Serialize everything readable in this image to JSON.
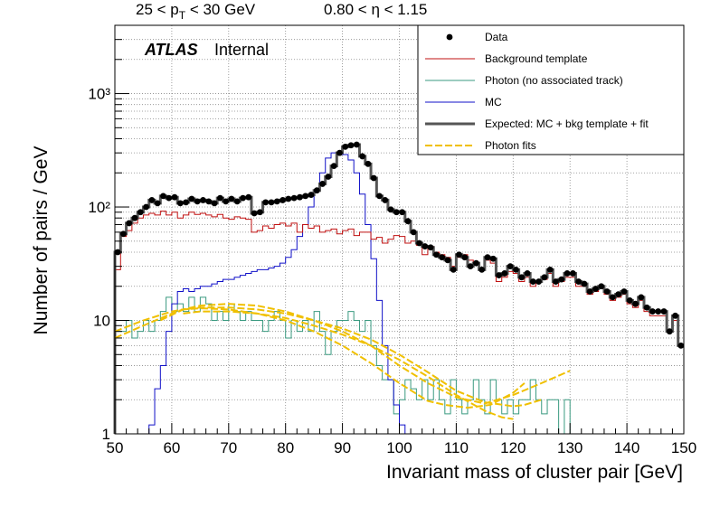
{
  "header": {
    "pt_prefix": "25 < p",
    "pt_sub": "T",
    "pt_suffix": " < 30 GeV",
    "eta_range": "0.80 < η < 1.15"
  },
  "label": {
    "atlas": "ATLAS",
    "status": "Internal"
  },
  "chart_data": {
    "type": "line",
    "xlabel": "Invariant mass of cluster pair [GeV]",
    "ylabel": "Number of pairs / GeV",
    "xlim": [
      50,
      150
    ],
    "ylim": [
      1,
      4000
    ],
    "yscale": "log",
    "grid": true,
    "legend_position": "top-right",
    "x_ticks": [
      50,
      60,
      70,
      80,
      90,
      100,
      110,
      120,
      130,
      140,
      150
    ],
    "y_ticks": [
      {
        "value": 1,
        "label": "1"
      },
      {
        "value": 10,
        "label": "10"
      },
      {
        "value": 100,
        "label": "10²"
      },
      {
        "value": 1000,
        "label": "10³"
      }
    ],
    "legend": [
      {
        "key": "data",
        "label": "Data",
        "style": "marker",
        "color": "#000000"
      },
      {
        "key": "bkg",
        "label": "Background template",
        "style": "line",
        "color": "#c01010"
      },
      {
        "key": "photon",
        "label": "Photon (no associated track)",
        "style": "line",
        "color": "#3a9a80"
      },
      {
        "key": "mc",
        "label": "MC",
        "style": "line",
        "color": "#1010c8"
      },
      {
        "key": "expected",
        "label": "Expected: MC + bkg template + fit",
        "style": "thick",
        "color": "#555555"
      },
      {
        "key": "fits",
        "label": "Photon fits",
        "style": "dashed",
        "color": "#f0c000"
      }
    ],
    "data": {
      "x": [
        50.5,
        51.5,
        52.5,
        53.5,
        54.5,
        55.5,
        56.5,
        57.5,
        58.5,
        59.5,
        60.5,
        61.5,
        62.5,
        63.5,
        64.5,
        65.5,
        66.5,
        67.5,
        68.5,
        69.5,
        70.5,
        71.5,
        72.5,
        73.5,
        74.5,
        75.5,
        76.5,
        77.5,
        78.5,
        79.5,
        80.5,
        81.5,
        82.5,
        83.5,
        84.5,
        85.5,
        86.5,
        87.5,
        88.5,
        89.5,
        90.5,
        91.5,
        92.5,
        93.5,
        94.5,
        95.5,
        96.5,
        97.5,
        98.5,
        99.5,
        100.5,
        101.5,
        102.5,
        103.5,
        104.5,
        105.5,
        106.5,
        107.5,
        108.5,
        109.5,
        110.5,
        111.5,
        112.5,
        113.5,
        114.5,
        115.5,
        116.5,
        117.5,
        118.5,
        119.5,
        120.5,
        121.5,
        122.5,
        123.5,
        124.5,
        125.5,
        126.5,
        127.5,
        128.5,
        129.5,
        130.5,
        131.5,
        132.5,
        133.5,
        134.5,
        135.5,
        136.5,
        137.5,
        138.5,
        139.5,
        140.5,
        141.5,
        142.5,
        143.5,
        144.5,
        145.5,
        146.5,
        147.5,
        148.5,
        149.5
      ],
      "y": [
        40,
        58,
        72,
        80,
        90,
        100,
        115,
        108,
        125,
        120,
        122,
        108,
        110,
        118,
        112,
        115,
        112,
        108,
        120,
        112,
        118,
        112,
        120,
        122,
        88,
        90,
        110,
        110,
        112,
        115,
        118,
        120,
        122,
        125,
        128,
        140,
        160,
        185,
        230,
        300,
        340,
        350,
        355,
        280,
        240,
        180,
        125,
        115,
        95,
        90,
        90,
        75,
        60,
        48,
        45,
        44,
        38,
        36,
        34,
        28,
        38,
        36,
        30,
        32,
        28,
        36,
        35,
        25,
        26,
        30,
        28,
        24,
        26,
        22,
        22,
        24,
        28,
        22,
        23,
        26,
        26,
        22,
        21,
        18,
        19,
        20,
        18,
        16,
        17,
        18,
        15,
        14,
        16,
        13,
        12,
        12,
        12,
        8,
        11,
        6
      ]
    },
    "background": {
      "y": [
        28,
        55,
        62,
        72,
        80,
        85,
        88,
        85,
        92,
        85,
        90,
        80,
        85,
        90,
        86,
        88,
        85,
        82,
        86,
        80,
        78,
        82,
        80,
        78,
        60,
        62,
        68,
        65,
        70,
        72,
        68,
        72,
        60,
        70,
        65,
        68,
        60,
        62,
        64,
        58,
        62,
        64,
        56,
        60,
        60,
        52,
        54,
        48,
        52,
        56,
        55,
        48,
        50,
        46,
        38,
        45,
        40,
        38,
        36,
        30,
        36,
        38,
        34,
        32,
        28,
        34,
        32,
        22,
        24,
        27,
        26,
        22,
        24,
        20,
        22,
        23,
        26,
        20,
        22,
        24,
        24,
        20,
        20,
        17,
        18,
        19,
        17,
        15,
        16,
        17,
        14,
        13,
        15,
        12,
        11,
        11,
        11,
        8,
        10,
        6
      ]
    },
    "photon": {
      "y": [
        8,
        8,
        10,
        7,
        8,
        10,
        8,
        10,
        12,
        16,
        12,
        14,
        12,
        16,
        12,
        16,
        14,
        10,
        12,
        10,
        14,
        12,
        10,
        12,
        10,
        10,
        8,
        10,
        12,
        10,
        7,
        10,
        8,
        10,
        8,
        12,
        8,
        5,
        8,
        10,
        10,
        12,
        10,
        8,
        10,
        6,
        4,
        3,
        3,
        1.5,
        2,
        3,
        2.5,
        2,
        3,
        2,
        3,
        2,
        1.5,
        3,
        2,
        1.5,
        2,
        3,
        2,
        1.5,
        3,
        2,
        1.5,
        2,
        1.5,
        2,
        2,
        3,
        2,
        1.5,
        2,
        2,
        1,
        2,
        1,
        1,
        1,
        1,
        1,
        1,
        1,
        1,
        1,
        1,
        1,
        1,
        1,
        1,
        1,
        1,
        1,
        1,
        1,
        1
      ]
    },
    "mc": {
      "y": [
        0.3,
        0.4,
        0.5,
        0.5,
        0.6,
        0.8,
        1.2,
        2.5,
        4,
        8,
        14,
        18,
        19,
        18,
        19,
        20,
        20,
        21,
        22,
        23,
        23,
        24,
        25,
        26,
        27,
        28,
        28,
        29,
        30,
        32,
        36,
        42,
        55,
        70,
        100,
        140,
        200,
        270,
        300,
        300,
        290,
        260,
        200,
        130,
        70,
        35,
        15,
        6,
        3,
        1.8,
        1.2,
        1,
        0.8,
        0.6,
        0.5,
        0.4,
        0.3,
        0.3,
        0.3,
        0.3,
        0.3,
        0.3,
        0.3,
        0.3,
        0.3,
        0.3,
        0.3,
        0.3,
        0.3,
        0.3,
        0.3,
        0.3,
        0.3,
        0.3,
        0.3,
        0.3,
        0.3,
        0.3,
        0.3,
        0.3,
        0.3,
        0.3,
        0.3,
        0.3,
        0.3,
        0.3,
        0.3,
        0.3,
        0.3,
        0.3,
        0.3,
        0.3,
        0.3,
        0.3,
        0.3,
        0.3,
        0.3,
        0.3,
        0.3,
        0.3
      ]
    },
    "photon_fits": [
      {
        "x": [
          50,
          55,
          60,
          62,
          65,
          70,
          75,
          80,
          85,
          90,
          95,
          100,
          105,
          110,
          115,
          120,
          125,
          130
        ],
        "y": [
          7,
          9,
          11.5,
          12.5,
          13.5,
          14,
          13.5,
          12,
          10,
          8,
          6,
          4,
          2.8,
          2.1,
          1.85,
          2.2,
          2.8,
          3.6
        ]
      },
      {
        "x": [
          50,
          55,
          60,
          62,
          65,
          70,
          75,
          80,
          85,
          90,
          95,
          100,
          105,
          108,
          112,
          116,
          120,
          122
        ],
        "y": [
          8,
          10,
          12,
          12.5,
          12.8,
          12.5,
          11.5,
          10,
          8,
          6,
          4.2,
          2.8,
          1.95,
          1.8,
          1.7,
          1.8,
          2.3,
          2.8
        ]
      },
      {
        "x": [
          58,
          62,
          65,
          70,
          75,
          80,
          85,
          90,
          95,
          100,
          105,
          110,
          115,
          120,
          122,
          125
        ],
        "y": [
          10,
          12.5,
          13,
          13,
          12.5,
          11.5,
          10,
          8.5,
          6.8,
          5,
          3.5,
          2.4,
          1.9,
          1.75,
          1.8,
          2
        ]
      },
      {
        "x": [
          62,
          65,
          70,
          75,
          80,
          85,
          90,
          95,
          100,
          105,
          110,
          115,
          118,
          120
        ],
        "y": [
          11.5,
          12,
          12,
          11.5,
          10.5,
          9,
          7.5,
          6,
          4.5,
          3.2,
          2.2,
          1.6,
          1.4,
          1.35
        ]
      }
    ]
  }
}
